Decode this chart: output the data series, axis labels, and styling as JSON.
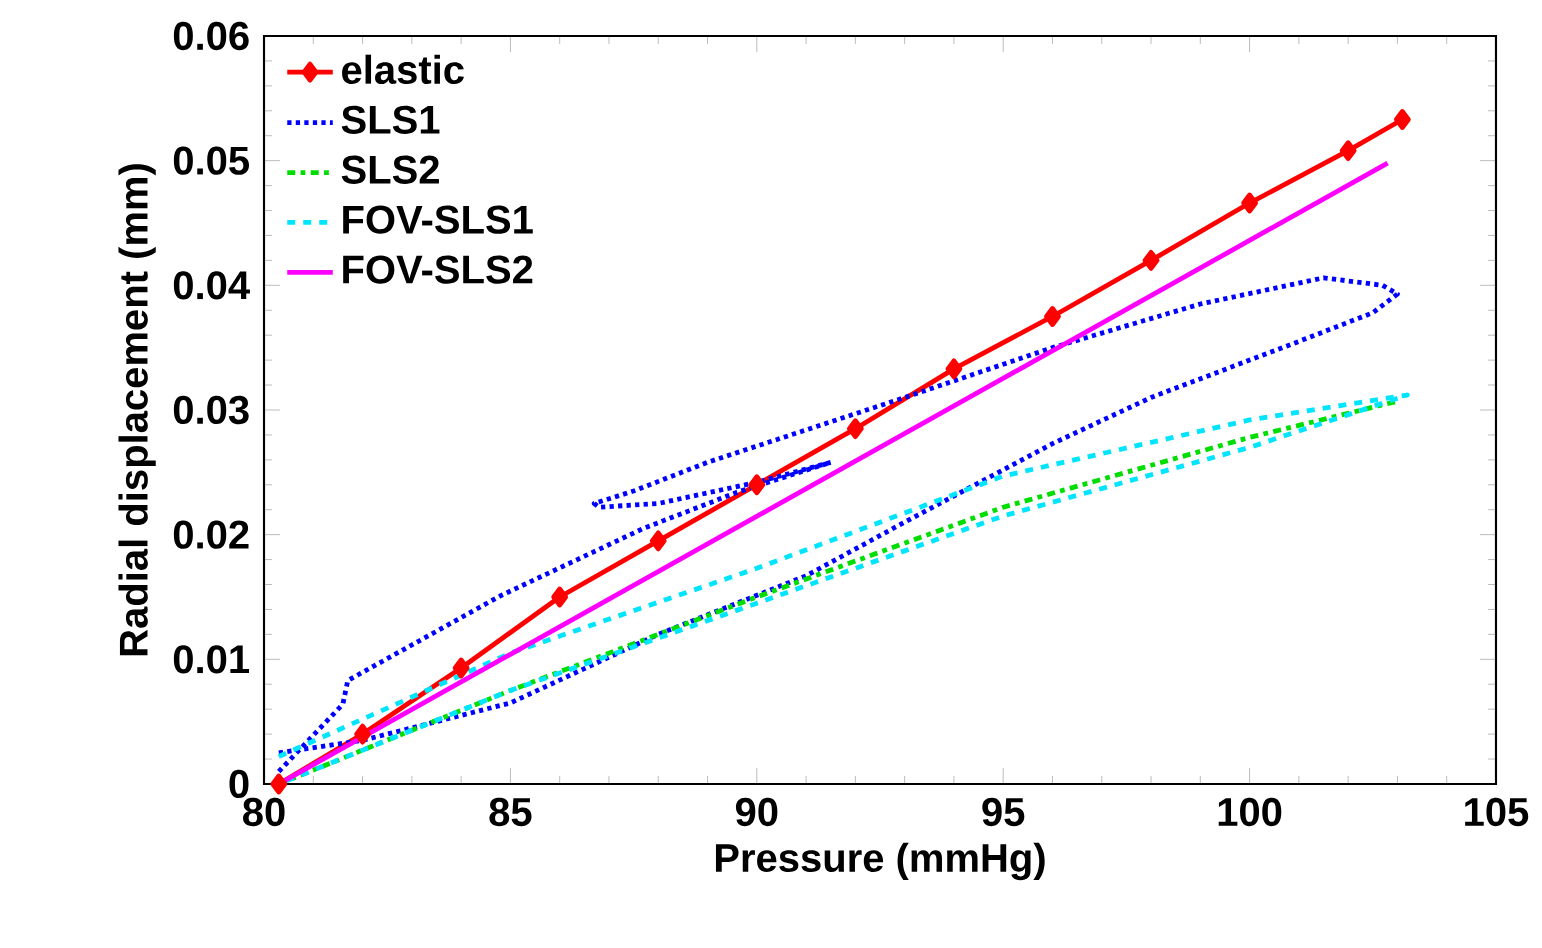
{
  "chart_data": {
    "type": "line",
    "xlabel": "Pressure (mmHg)",
    "ylabel": "Radial displacement (mm)",
    "xlim": [
      80,
      105
    ],
    "xticks": [
      80,
      85,
      90,
      95,
      100,
      105
    ],
    "ylim": [
      0,
      0.06
    ],
    "yticks": [
      0,
      0.01,
      0.02,
      0.03,
      0.04,
      0.05,
      0.06
    ],
    "grid": false,
    "legend": "top left",
    "series": [
      {
        "name": "elastic",
        "color": "#ff0000",
        "marker": "diamond",
        "line_style": "solid",
        "x": [
          80.3,
          82,
          84,
          86,
          88,
          90,
          92,
          94,
          96,
          98,
          100,
          102,
          103.1
        ],
        "values": [
          0,
          0.004,
          0.0093,
          0.015,
          0.0195,
          0.024,
          0.0285,
          0.0333,
          0.0375,
          0.042,
          0.0466,
          0.0508,
          0.0533
        ]
      },
      {
        "name": "SLS1",
        "color": "#0000ff",
        "marker": "none",
        "line_style": "dotted",
        "x": [
          80.3,
          81.6,
          81.7,
          84.8,
          87.7,
          89.6,
          91.5,
          90,
          88,
          86.8,
          86.7,
          87.5,
          89,
          93,
          96,
          99,
          101.5,
          102.7,
          103,
          102.5,
          101,
          98,
          96,
          93,
          91,
          88,
          85,
          82,
          80.3
        ],
        "values": [
          0.001,
          0.0064,
          0.0083,
          0.0151,
          0.0205,
          0.0234,
          0.0258,
          0.0242,
          0.0225,
          0.0222,
          0.0225,
          0.0235,
          0.0258,
          0.031,
          0.035,
          0.0385,
          0.0406,
          0.04,
          0.0393,
          0.0378,
          0.0355,
          0.031,
          0.0273,
          0.021,
          0.0167,
          0.012,
          0.0065,
          0.0035,
          0.0025
        ]
      },
      {
        "name": "SLS2",
        "color": "#00dd00",
        "marker": "none",
        "line_style": "dashdot",
        "x": [
          80.3,
          85,
          90,
          95,
          100,
          103
        ],
        "values": [
          0,
          0.0075,
          0.015,
          0.0222,
          0.0278,
          0.0307
        ]
      },
      {
        "name": "FOV-SLS1",
        "color": "#00e5ff",
        "marker": "none",
        "line_style": "dashed",
        "x": [
          80.3,
          85,
          90,
          95,
          100,
          103.2,
          100,
          95,
          90,
          85,
          80.3
        ],
        "values": [
          0.0022,
          0.0105,
          0.0173,
          0.0247,
          0.0292,
          0.0312,
          0.027,
          0.0215,
          0.0145,
          0.0075,
          0
        ]
      },
      {
        "name": "FOV-SLS2",
        "color": "#ff00ff",
        "marker": "none",
        "line_style": "solid",
        "x": [
          80.3,
          102.8
        ],
        "values": [
          0,
          0.0498
        ]
      }
    ]
  }
}
